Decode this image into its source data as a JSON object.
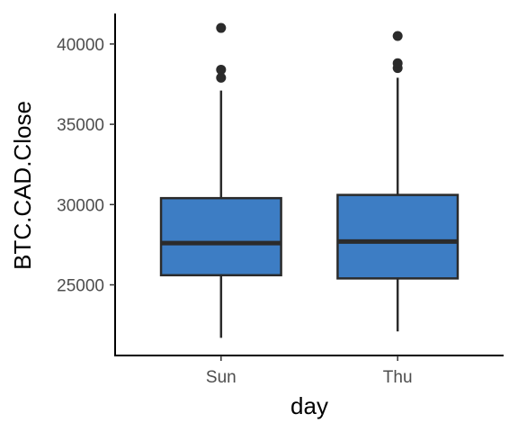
{
  "chart_data": {
    "type": "box",
    "xlabel": "day",
    "ylabel": "BTC.CAD.Close",
    "categories": [
      "Sun",
      "Thu"
    ],
    "ylim": [
      20600,
      41900
    ],
    "yticks": [
      25000,
      30000,
      35000,
      40000
    ],
    "ytick_labels": [
      "25000",
      "30000",
      "35000",
      "40000"
    ],
    "grid": false,
    "fill_color": "#3d7dc4",
    "line_color": "#2b2b2b",
    "boxes": [
      {
        "category": "Sun",
        "whisker_low": 21700,
        "q1": 25600,
        "median": 27600,
        "q3": 30400,
        "whisker_high": 37100,
        "outliers": [
          37900,
          38400,
          41000
        ]
      },
      {
        "category": "Thu",
        "whisker_low": 22100,
        "q1": 25400,
        "median": 27700,
        "q3": 30600,
        "whisker_high": 37900,
        "outliers": [
          38500,
          38800,
          40500
        ]
      }
    ]
  }
}
